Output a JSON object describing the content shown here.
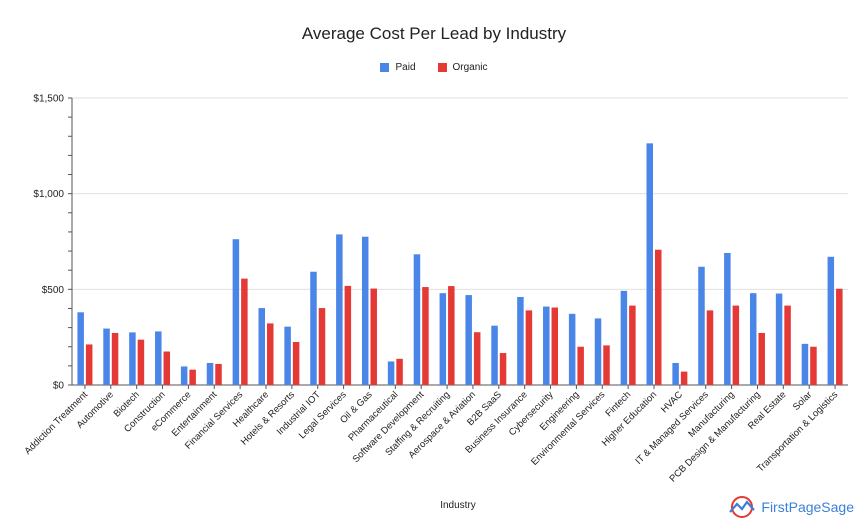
{
  "colors": {
    "paid": "#4a86e8",
    "organic": "#e53935",
    "grid": "#e0e0e0",
    "axis": "#555555"
  },
  "logo": {
    "text": "FirstPageSage",
    "icon": "sage-logo-icon"
  },
  "chart_data": {
    "type": "bar",
    "title": "Average Cost Per Lead by Industry",
    "xlabel": "Industry",
    "ylabel": "",
    "ylim": [
      0,
      1500
    ],
    "yticks": [
      {
        "value": 0,
        "label": "$0"
      },
      {
        "value": 500,
        "label": "$500"
      },
      {
        "value": 1000,
        "label": "$1,000"
      },
      {
        "value": 1500,
        "label": "$1,500"
      }
    ],
    "grid": true,
    "legend_position": "top-center",
    "categories": [
      "Addiction Treatment",
      "Automotive",
      "Biotech",
      "Construction",
      "eCommerce",
      "Entertainment",
      "Financial Services",
      "Healthcare",
      "Hotels & Resorts",
      "Industrial IOT",
      "Legal Services",
      "Oil & Gas",
      "Pharmaceutical",
      "Software Development",
      "Staffing & Recruiting",
      "Aerospace & Aviation",
      "B2B SaaS",
      "Business Insurance",
      "Cybersecurity",
      "Engineering",
      "Environmental Services",
      "Fintech",
      "Higher Education",
      "HVAC",
      "IT & Managed Services",
      "Manufacturing",
      "PCB Design & Manufacturing",
      "Real Estate",
      "Solar",
      "Transportation & Logistics"
    ],
    "series": [
      {
        "name": "Paid",
        "color": "#4a86e8",
        "values": [
          380,
          295,
          275,
          280,
          97,
          115,
          762,
          402,
          305,
          592,
          787,
          775,
          123,
          683,
          480,
          470,
          310,
          460,
          410,
          372,
          348,
          492,
          1263,
          115,
          618,
          690,
          480,
          478,
          215,
          670
        ]
      },
      {
        "name": "Organic",
        "color": "#e53935",
        "values": [
          212,
          272,
          237,
          175,
          80,
          110,
          556,
          322,
          225,
          402,
          518,
          504,
          137,
          512,
          517,
          276,
          167,
          390,
          405,
          200,
          207,
          415,
          707,
          70,
          390,
          415,
          272,
          415,
          200,
          503
        ]
      }
    ]
  }
}
